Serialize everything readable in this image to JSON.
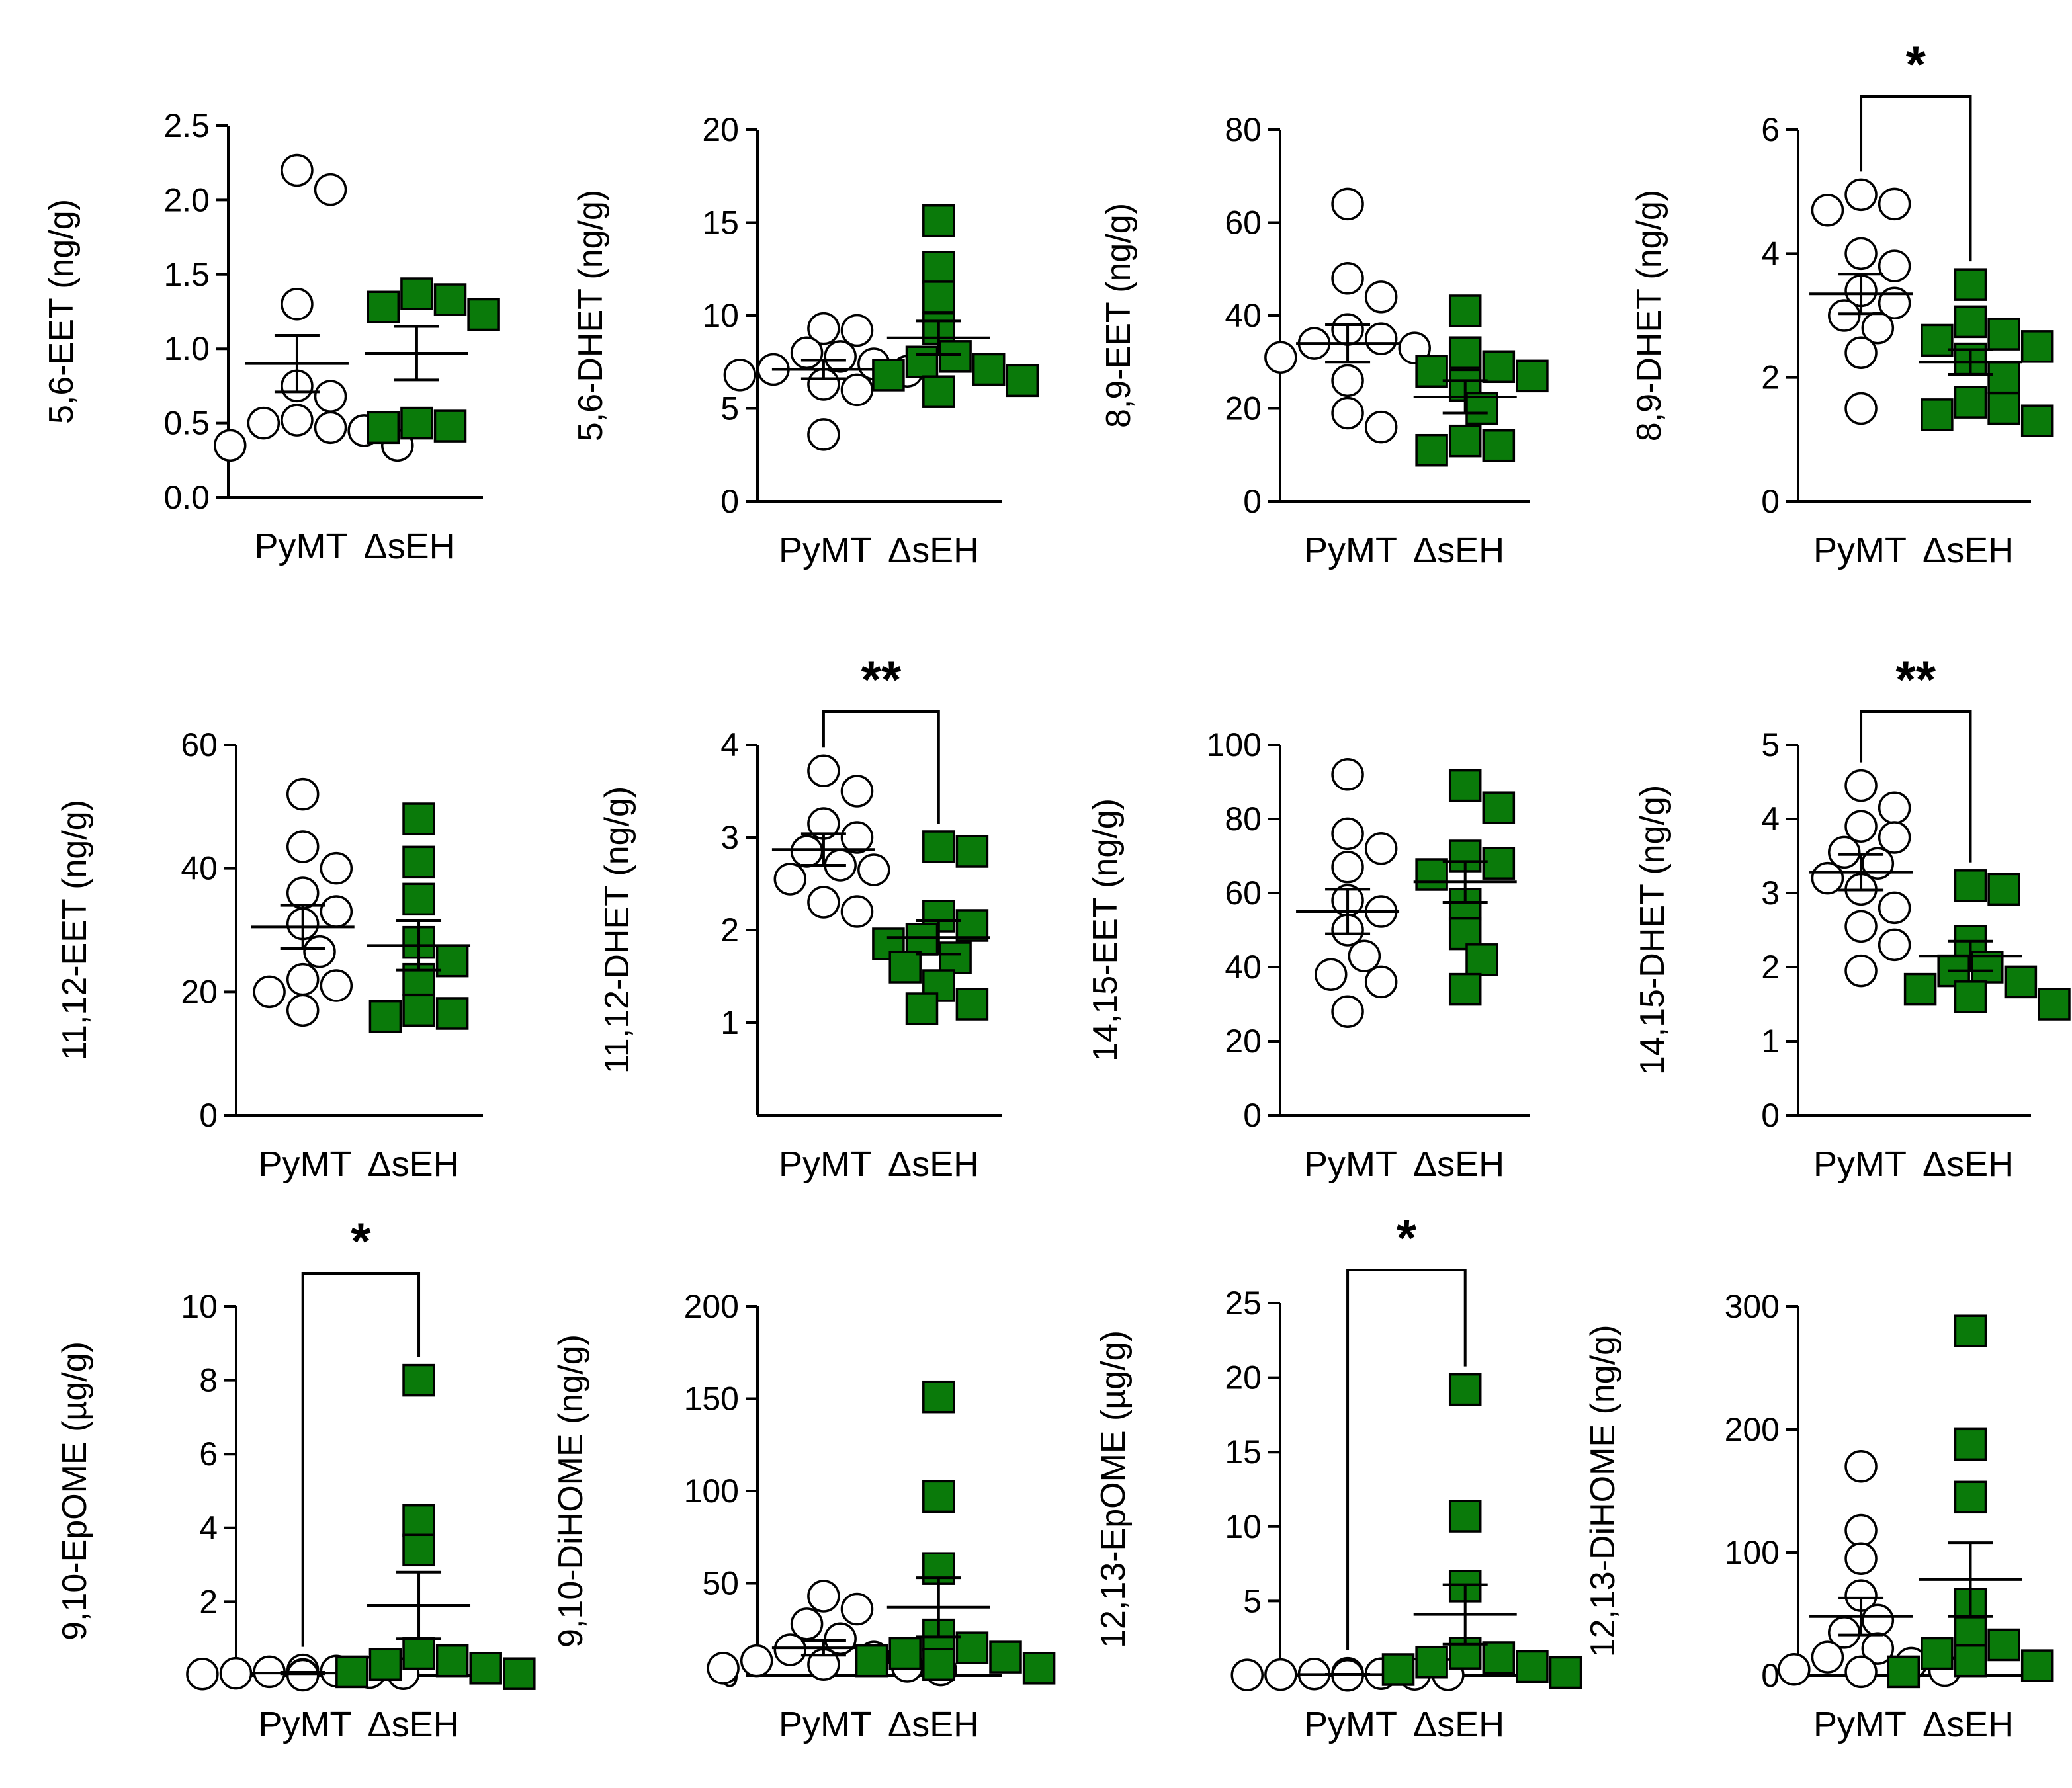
{
  "colors": {
    "pymt_fill": "#ffffff",
    "dseh_fill": "#0a7a0a",
    "stroke": "#000000"
  },
  "chart_data": [
    {
      "type": "scatter",
      "ylabel": "5,6-EET (ng/g)",
      "ylim": [
        0,
        2.5
      ],
      "yticks": [
        "0.0",
        "0.5",
        "1.0",
        "1.5",
        "2.0",
        "2.5"
      ],
      "categories": [
        "PyMT",
        "ΔsEH"
      ],
      "series": [
        {
          "name": "PyMT",
          "values": [
            2.2,
            2.07,
            1.3,
            0.75,
            0.68,
            0.52,
            0.5,
            0.47,
            0.45,
            0.35,
            0.35
          ],
          "mean": 0.9,
          "sem": 0.19
        },
        {
          "name": "ΔsEH",
          "values": [
            1.37,
            1.33,
            1.28,
            1.23,
            0.5,
            0.48,
            0.47
          ],
          "mean": 0.97,
          "sem": 0.18
        }
      ],
      "significance": ""
    },
    {
      "type": "scatter",
      "ylabel": "5,6-DHET (ng/g)",
      "ylim": [
        0,
        20
      ],
      "yticks": [
        "0",
        "5",
        "10",
        "15",
        "20"
      ],
      "categories": [
        "PyMT",
        "ΔsEH"
      ],
      "series": [
        {
          "name": "PyMT",
          "values": [
            9.3,
            9.2,
            8.0,
            7.8,
            7.4,
            7.1,
            7.0,
            6.8,
            6.3,
            6.0,
            3.6
          ],
          "mean": 7.1,
          "sem": 0.5
        },
        {
          "name": "ΔsEH",
          "values": [
            15.1,
            12.6,
            11.0,
            9.3,
            7.8,
            7.5,
            7.1,
            6.8,
            6.5,
            5.9
          ],
          "mean": 8.8,
          "sem": 0.9
        }
      ],
      "significance": ""
    },
    {
      "type": "scatter",
      "ylabel": "8,9-EET (ng/g)",
      "ylim": [
        0,
        80
      ],
      "yticks": [
        "0",
        "20",
        "40",
        "60",
        "80"
      ],
      "categories": [
        "PyMT",
        "ΔsEH"
      ],
      "series": [
        {
          "name": "PyMT",
          "values": [
            64,
            48,
            44,
            37,
            35,
            34,
            33,
            31,
            26,
            19,
            16
          ],
          "mean": 34,
          "sem": 4
        },
        {
          "name": "ΔsEH",
          "values": [
            41,
            32,
            29,
            28,
            27,
            25,
            20,
            13,
            12,
            11
          ],
          "mean": 22.5,
          "sem": 3.5
        }
      ],
      "significance": ""
    },
    {
      "type": "scatter",
      "ylabel": "8,9-DHET (ng/g)",
      "ylim": [
        0,
        6
      ],
      "yticks": [
        "0",
        "2",
        "4",
        "6"
      ],
      "categories": [
        "PyMT",
        "ΔsEH"
      ],
      "series": [
        {
          "name": "PyMT",
          "values": [
            4.95,
            4.8,
            4.7,
            4.0,
            3.8,
            3.4,
            3.2,
            3.0,
            2.8,
            2.4,
            1.5
          ],
          "mean": 3.35,
          "sem": 0.32
        },
        {
          "name": "ΔsEH",
          "values": [
            3.5,
            2.9,
            2.7,
            2.6,
            2.5,
            2.3,
            2.0,
            1.6,
            1.5,
            1.4,
            1.3
          ],
          "mean": 2.25,
          "sem": 0.2
        }
      ],
      "significance": "*"
    },
    {
      "type": "scatter",
      "ylabel": "11,12-EET (ng/g)",
      "ylim": [
        0,
        60
      ],
      "yticks": [
        "0",
        "20",
        "40",
        "60"
      ],
      "categories": [
        "PyMT",
        "ΔsEH"
      ],
      "series": [
        {
          "name": "PyMT",
          "values": [
            52,
            43.5,
            40,
            36,
            33,
            31,
            26.5,
            22,
            21,
            20,
            17
          ],
          "mean": 30.5,
          "sem": 3.5
        },
        {
          "name": "ΔsEH",
          "values": [
            48,
            41,
            35,
            28,
            25,
            22,
            17,
            16.5,
            16
          ],
          "mean": 27.5,
          "sem": 4
        }
      ],
      "significance": ""
    },
    {
      "type": "scatter",
      "ylabel": "11,12-DHET (ng/g)",
      "ylim": [
        0,
        4
      ],
      "yticks": [
        "1",
        "2",
        "3",
        "4"
      ],
      "categories": [
        "PyMT",
        "ΔsEH"
      ],
      "series": [
        {
          "name": "PyMT",
          "values": [
            3.72,
            3.5,
            3.15,
            3.0,
            2.85,
            2.7,
            2.65,
            2.55,
            2.3,
            2.2
          ],
          "mean": 2.87,
          "sem": 0.17
        },
        {
          "name": "ΔsEH",
          "values": [
            2.9,
            2.85,
            2.15,
            2.05,
            1.9,
            1.85,
            1.7,
            1.6,
            1.4,
            1.2,
            1.15
          ],
          "mean": 1.92,
          "sem": 0.18
        }
      ],
      "significance": "**"
    },
    {
      "type": "scatter",
      "ylabel": "14,15-EET (ng/g)",
      "ylim": [
        0,
        100
      ],
      "yticks": [
        "0",
        "20",
        "40",
        "60",
        "80",
        "100"
      ],
      "categories": [
        "PyMT",
        "ΔsEH"
      ],
      "series": [
        {
          "name": "PyMT",
          "values": [
            92,
            76,
            72,
            67,
            58,
            55,
            50,
            43,
            38,
            36,
            28
          ],
          "mean": 55,
          "sem": 6
        },
        {
          "name": "ΔsEH",
          "values": [
            89,
            83,
            70,
            68,
            65,
            57,
            49,
            42,
            34
          ],
          "mean": 63,
          "sem": 5.5
        }
      ],
      "significance": ""
    },
    {
      "type": "scatter",
      "ylabel": "14,15-DHET (ng/g)",
      "ylim": [
        0,
        5
      ],
      "yticks": [
        "0",
        "1",
        "2",
        "3",
        "4",
        "5"
      ],
      "categories": [
        "PyMT",
        "ΔsEH"
      ],
      "series": [
        {
          "name": "PyMT",
          "values": [
            4.45,
            4.15,
            3.9,
            3.75,
            3.55,
            3.4,
            3.2,
            3.05,
            2.8,
            2.55,
            2.3,
            1.95
          ],
          "mean": 3.28,
          "sem": 0.24
        },
        {
          "name": "ΔsEH",
          "values": [
            3.1,
            3.05,
            2.35,
            2.0,
            1.95,
            1.8,
            1.7,
            1.6,
            1.5
          ],
          "mean": 2.15,
          "sem": 0.2
        }
      ],
      "significance": "**"
    },
    {
      "type": "scatter",
      "ylabel": "9,10-EpOME (µg/g)",
      "ylim": [
        0,
        10
      ],
      "yticks": [
        "0",
        "2",
        "4",
        "6",
        "8",
        "10"
      ],
      "categories": [
        "PyMT",
        "ΔsEH"
      ],
      "series": [
        {
          "name": "PyMT",
          "values": [
            0.15,
            0.12,
            0.1,
            0.08,
            0.06,
            0.05,
            0.04,
            0.03,
            0.02,
            0.01
          ],
          "mean": 0.07,
          "sem": 0.02
        },
        {
          "name": "ΔsEH",
          "values": [
            8.0,
            4.2,
            3.4,
            0.6,
            0.4,
            0.3,
            0.2,
            0.1,
            0.05
          ],
          "mean": 1.9,
          "sem": 0.9
        }
      ],
      "significance": "*"
    },
    {
      "type": "scatter",
      "ylabel": "9,10-DiHOME (ng/g)",
      "ylim": [
        0,
        200
      ],
      "yticks": [
        "0",
        "50",
        "100",
        "150",
        "200"
      ],
      "categories": [
        "PyMT",
        "ΔsEH"
      ],
      "series": [
        {
          "name": "PyMT",
          "values": [
            43,
            36,
            28,
            20,
            14,
            10,
            8,
            6,
            5,
            4,
            3
          ],
          "mean": 15,
          "sem": 4
        },
        {
          "name": "ΔsEH",
          "values": [
            151,
            97,
            58,
            22,
            15,
            12,
            10,
            8,
            6,
            4
          ],
          "mean": 37,
          "sem": 16
        }
      ],
      "significance": ""
    },
    {
      "type": "scatter",
      "ylabel": "12,13-EpOME (µg/g)",
      "ylim": [
        0,
        25
      ],
      "yticks": [
        "0",
        "5",
        "10",
        "15",
        "20",
        "25"
      ],
      "categories": [
        "PyMT",
        "ΔsEH"
      ],
      "series": [
        {
          "name": "PyMT",
          "values": [
            0.15,
            0.12,
            0.1,
            0.08,
            0.06,
            0.05,
            0.04,
            0.03,
            0.02,
            0.01
          ],
          "mean": 0.07,
          "sem": 0.02
        },
        {
          "name": "ΔsEH",
          "values": [
            19.2,
            10.7,
            6.0,
            1.5,
            1.2,
            0.9,
            0.6,
            0.4,
            0.2
          ],
          "mean": 4.1,
          "sem": 2.0
        }
      ],
      "significance": "*"
    },
    {
      "type": "scatter",
      "ylabel": "12,13-DiHOME (ng/g)",
      "ylim": [
        0,
        300
      ],
      "yticks": [
        "0",
        "100",
        "200",
        "300"
      ],
      "categories": [
        "PyMT",
        "ΔsEH"
      ],
      "series": [
        {
          "name": "PyMT",
          "values": [
            170,
            118,
            95,
            65,
            45,
            35,
            22,
            15,
            10,
            5,
            4,
            3
          ],
          "mean": 48,
          "sem": 15
        },
        {
          "name": "ΔsEH",
          "values": [
            280,
            188,
            145,
            58,
            35,
            25,
            18,
            12,
            8,
            3
          ],
          "mean": 78,
          "sem": 30
        }
      ],
      "significance": ""
    }
  ]
}
